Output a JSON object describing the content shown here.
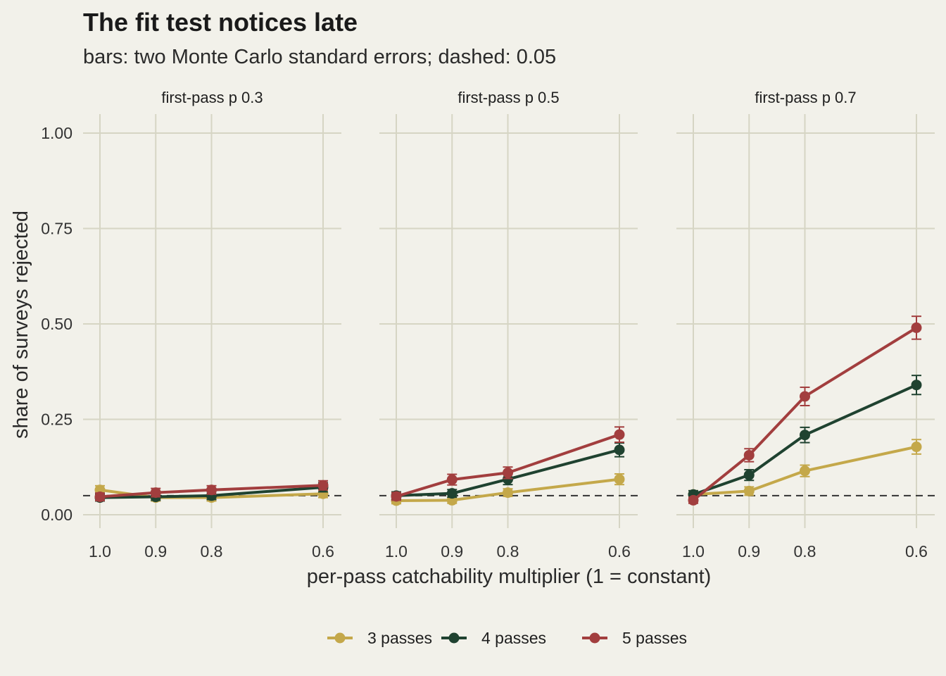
{
  "chart_data": {
    "type": "line",
    "title": "The fit test notices late",
    "subtitle": "bars: two Monte Carlo standard errors; dashed: 0.05",
    "xlabel": "per-pass catchability multiplier (1 = constant)",
    "ylabel": "share of surveys rejected",
    "x_ticks": [
      "1.0",
      "0.9",
      "0.8",
      "0.6"
    ],
    "x_values": [
      1.0,
      0.9,
      0.8,
      0.6
    ],
    "x_reversed": true,
    "ylim": [
      0,
      1
    ],
    "y_ticks": [
      "0.00",
      "0.25",
      "0.50",
      "0.75",
      "1.00"
    ],
    "reference_line": 0.05,
    "grid": true,
    "legend": {
      "position": "bottom",
      "entries": [
        "3 passes",
        "4 passes",
        "5 passes"
      ]
    },
    "colors": {
      "background": "#f2f1ea",
      "grid": "#d6d5c4",
      "3 passes": "#c4a84a",
      "4 passes": "#1f4230",
      "5 passes": "#a23e3e"
    },
    "panels": [
      {
        "label": "first-pass p 0.3",
        "series": [
          {
            "name": "3 passes",
            "x": [
              1.0,
              0.9,
              0.8,
              0.6
            ],
            "y": [
              0.065,
              0.045,
              0.045,
              0.055
            ],
            "err": [
              0.011,
              0.009,
              0.009,
              0.01
            ]
          },
          {
            "name": "4 passes",
            "x": [
              1.0,
              0.9,
              0.8,
              0.6
            ],
            "y": [
              0.045,
              0.047,
              0.05,
              0.072
            ],
            "err": [
              0.009,
              0.009,
              0.01,
              0.012
            ]
          },
          {
            "name": "5 passes",
            "x": [
              1.0,
              0.9,
              0.8,
              0.6
            ],
            "y": [
              0.047,
              0.058,
              0.065,
              0.077
            ],
            "err": [
              0.01,
              0.011,
              0.011,
              0.012
            ]
          }
        ]
      },
      {
        "label": "first-pass p 0.5",
        "series": [
          {
            "name": "3 passes",
            "x": [
              1.0,
              0.9,
              0.8,
              0.6
            ],
            "y": [
              0.037,
              0.038,
              0.058,
              0.093
            ],
            "err": [
              0.008,
              0.008,
              0.01,
              0.014
            ]
          },
          {
            "name": "4 passes",
            "x": [
              1.0,
              0.9,
              0.8,
              0.6
            ],
            "y": [
              0.05,
              0.056,
              0.093,
              0.17
            ],
            "err": [
              0.01,
              0.01,
              0.014,
              0.018
            ]
          },
          {
            "name": "5 passes",
            "x": [
              1.0,
              0.9,
              0.8,
              0.6
            ],
            "y": [
              0.048,
              0.092,
              0.11,
              0.21
            ],
            "err": [
              0.01,
              0.014,
              0.015,
              0.02
            ]
          }
        ]
      },
      {
        "label": "first-pass p 0.7",
        "series": [
          {
            "name": "3 passes",
            "x": [
              1.0,
              0.9,
              0.8,
              0.6
            ],
            "y": [
              0.053,
              0.062,
              0.115,
              0.178
            ],
            "err": [
              0.01,
              0.011,
              0.015,
              0.019
            ]
          },
          {
            "name": "4 passes",
            "x": [
              1.0,
              0.9,
              0.8,
              0.6
            ],
            "y": [
              0.053,
              0.104,
              0.209,
              0.34
            ],
            "err": [
              0.01,
              0.014,
              0.02,
              0.025
            ]
          },
          {
            "name": "5 passes",
            "x": [
              1.0,
              0.9,
              0.8,
              0.6
            ],
            "y": [
              0.038,
              0.156,
              0.31,
              0.49
            ],
            "err": [
              0.008,
              0.017,
              0.024,
              0.03
            ]
          }
        ]
      }
    ]
  }
}
